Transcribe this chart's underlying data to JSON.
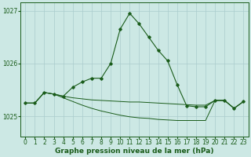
{
  "title": "Graphe pression niveau de la mer (hPa)",
  "bg_color": "#cce8e4",
  "grid_color": "#aacccc",
  "line_color": "#1a5c1a",
  "xlim": [
    -0.5,
    23.5
  ],
  "ylim": [
    1024.62,
    1027.15
  ],
  "yticks": [
    1025,
    1026,
    1027
  ],
  "xticks": [
    0,
    1,
    2,
    3,
    4,
    5,
    6,
    7,
    8,
    9,
    10,
    11,
    12,
    13,
    14,
    15,
    16,
    17,
    18,
    19,
    20,
    21,
    22,
    23
  ],
  "peak_y": [
    1025.25,
    1025.25,
    1025.45,
    1025.42,
    1025.38,
    1025.55,
    1025.65,
    1025.72,
    1025.72,
    1026.0,
    1026.65,
    1026.95,
    1026.75,
    1026.5,
    1026.25,
    1026.05,
    1025.6,
    1025.2,
    1025.18,
    1025.18,
    1025.3,
    1025.3,
    1025.15,
    1025.28
  ],
  "flat1_y": [
    1025.25,
    1025.25,
    1025.45,
    1025.42,
    1025.38,
    1025.35,
    1025.33,
    1025.31,
    1025.3,
    1025.29,
    1025.28,
    1025.27,
    1025.27,
    1025.26,
    1025.25,
    1025.24,
    1025.23,
    1025.22,
    1025.21,
    1025.21,
    1025.3,
    1025.3,
    1025.15,
    1025.28
  ],
  "flat2_y": [
    1025.25,
    1025.25,
    1025.45,
    1025.42,
    1025.35,
    1025.28,
    1025.21,
    1025.15,
    1025.1,
    1025.06,
    1025.02,
    1024.99,
    1024.97,
    1024.96,
    1024.94,
    1024.93,
    1024.92,
    1024.92,
    1024.92,
    1024.92,
    1025.3,
    1025.3,
    1025.15,
    1025.28
  ],
  "fontsize_title": 6.5,
  "fontsize_tick": 5.5
}
